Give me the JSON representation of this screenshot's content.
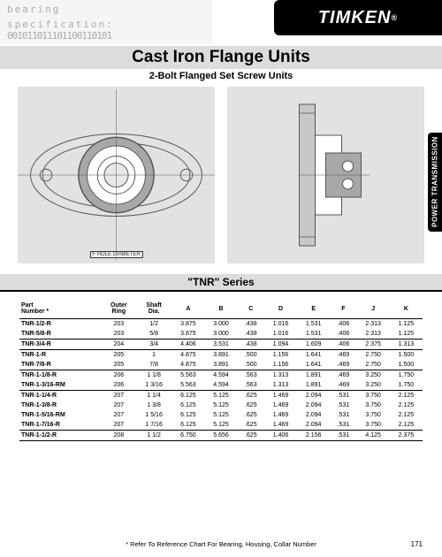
{
  "top": {
    "spec_label_1": "bearing",
    "spec_label_2": "specification:",
    "bits": "001011011101100110101"
  },
  "brand": {
    "name": "TIMKEN",
    "reg": "®"
  },
  "header": {
    "title": "Cast Iron Flange Units",
    "subtitle": "2-Bolt Flanged Set Screw Units"
  },
  "side_tab": "POWER TRANSMISSION",
  "diagram": {
    "hole_label": "F HOLE DIAMETER",
    "bg_color": "#e2e2e2",
    "line_color": "#555555",
    "center_fill": "#ffffff"
  },
  "series": {
    "title": "\"TNR\" Series"
  },
  "table": {
    "columns": [
      {
        "label": "Part\nNumber *",
        "key": "pn",
        "align": "left"
      },
      {
        "label": "Outer\nRing",
        "key": "or",
        "align": "center"
      },
      {
        "label": "Shaft\nDia.",
        "key": "sd",
        "align": "center"
      },
      {
        "label": "A",
        "key": "A",
        "align": "center"
      },
      {
        "label": "B",
        "key": "B",
        "align": "center"
      },
      {
        "label": "C",
        "key": "C",
        "align": "center"
      },
      {
        "label": "D",
        "key": "D",
        "align": "center"
      },
      {
        "label": "E",
        "key": "E",
        "align": "center"
      },
      {
        "label": "F",
        "key": "F",
        "align": "center"
      },
      {
        "label": "J",
        "key": "J",
        "align": "center"
      },
      {
        "label": "K",
        "key": "K",
        "align": "center"
      }
    ],
    "groups": [
      [
        {
          "pn": "TNR-1/2-R",
          "or": "203",
          "sd": "1/2",
          "A": "3.875",
          "B": "3.000",
          "C": ".438",
          "D": "1.016",
          "E": "1.531",
          "F": ".406",
          "J": "2.313",
          "K": "1.125"
        },
        {
          "pn": "TNR-5/8-R",
          "or": "203",
          "sd": "5/8",
          "A": "3.875",
          "B": "3.000",
          "C": ".438",
          "D": "1.016",
          "E": "1.531",
          "F": ".406",
          "J": "2.313",
          "K": "1.125"
        }
      ],
      [
        {
          "pn": "TNR-3/4-R",
          "or": "204",
          "sd": "3/4",
          "A": "4.406",
          "B": "3.531",
          "C": ".438",
          "D": "1.094",
          "E": "1.609",
          "F": ".406",
          "J": "2.375",
          "K": "1.313"
        }
      ],
      [
        {
          "pn": "TNR-1-R",
          "or": "205",
          "sd": "1",
          "A": "4.875",
          "B": "3.891",
          "C": ".500",
          "D": "1.156",
          "E": "1.641",
          "F": ".469",
          "J": "2.750",
          "K": "1.500"
        },
        {
          "pn": "TNR-7/8-R",
          "or": "205",
          "sd": "7/8",
          "A": "4.875",
          "B": "3.891",
          "C": ".500",
          "D": "1.156",
          "E": "1.641",
          "F": ".469",
          "J": "2.750",
          "K": "1.500"
        }
      ],
      [
        {
          "pn": "TNR-1-1/8-R",
          "or": "206",
          "sd": "1 1/8",
          "A": "5.563",
          "B": "4.594",
          "C": ".563",
          "D": "1.313",
          "E": "1.891",
          "F": ".469",
          "J": "3.250",
          "K": "1.750"
        },
        {
          "pn": "TNR-1-3/16-RM",
          "or": "206",
          "sd": "1 3/16",
          "A": "5.563",
          "B": "4.594",
          "C": ".563",
          "D": "1.313",
          "E": "1.891",
          "F": ".469",
          "J": "3.250",
          "K": "1.750"
        }
      ],
      [
        {
          "pn": "TNR-1-1/4-R",
          "or": "207",
          "sd": "1 1/4",
          "A": "6.125",
          "B": "5.125",
          "C": ".625",
          "D": "1.469",
          "E": "2.094",
          "F": ".531",
          "J": "3.750",
          "K": "2.125"
        },
        {
          "pn": "TNR-1-3/8-R",
          "or": "207",
          "sd": "1 3/8",
          "A": "6.125",
          "B": "5.125",
          "C": ".625",
          "D": "1.469",
          "E": "2.094",
          "F": ".531",
          "J": "3.750",
          "K": "2.125"
        },
        {
          "pn": "TNR-1-5/16-RM",
          "or": "207",
          "sd": "1 5/16",
          "A": "6.125",
          "B": "5.125",
          "C": ".625",
          "D": "1.469",
          "E": "2.094",
          "F": ".531",
          "J": "3.750",
          "K": "2.125"
        },
        {
          "pn": "TNR-1-7/16-R",
          "or": "207",
          "sd": "1 7/16",
          "A": "6.125",
          "B": "5.125",
          "C": ".625",
          "D": "1.469",
          "E": "2.094",
          "F": ".531",
          "J": "3.750",
          "K": "2.125"
        }
      ],
      [
        {
          "pn": "TNR-1-1/2-R",
          "or": "208",
          "sd": "1 1/2",
          "A": "6.750",
          "B": "5.656",
          "C": ".625",
          "D": "1.406",
          "E": "2.156",
          "F": ".531",
          "J": "4.125",
          "K": "2.375"
        }
      ]
    ]
  },
  "footnote": "* Refer To Reference Chart For Bearing, Housing, Collar Number",
  "page_number": "171"
}
